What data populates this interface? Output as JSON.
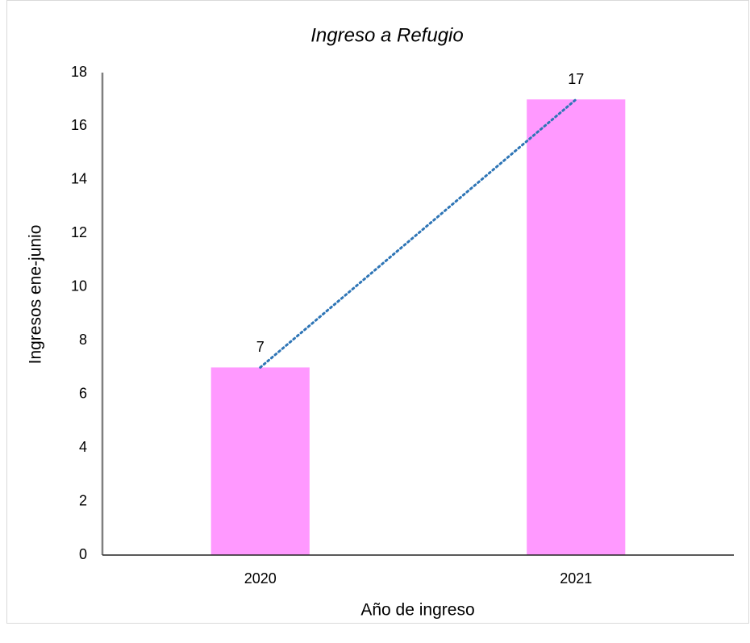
{
  "chart_data": {
    "type": "bar",
    "title": "Ingreso a Refugio",
    "x_label": "Año de ingreso",
    "y_label": "Ingresos ene-junio",
    "categories": [
      "2020",
      "2021"
    ],
    "values": [
      7,
      17
    ],
    "color": "#ff99ff",
    "ylim": [
      0,
      18
    ],
    "yticks": [
      0,
      2,
      4,
      6,
      8,
      10,
      12,
      14,
      16,
      18
    ],
    "grid": false,
    "data_labels": true,
    "trendline": true,
    "trendline_color": "#2e75b6"
  }
}
